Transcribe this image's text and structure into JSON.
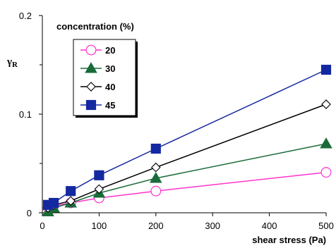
{
  "chart_data": {
    "type": "line",
    "xlabel": "shear stress (Pa)",
    "ylabel_main": "γ",
    "ylabel_sub": "R",
    "xlim": [
      0,
      500
    ],
    "ylim": [
      0,
      0.2
    ],
    "x_ticks": [
      0,
      100,
      200,
      300,
      400,
      500
    ],
    "x_tick_labels": [
      "0",
      "100",
      "200",
      "300",
      "400",
      "500"
    ],
    "y_ticks": [
      0,
      0.1,
      0.2
    ],
    "y_tick_labels": [
      "0",
      "0.1",
      "0.2"
    ],
    "y_minor_ticks": [
      0.05,
      0.15
    ],
    "grid": false,
    "legend": {
      "title": "concentration (%)",
      "placement": "top-left"
    },
    "series": [
      {
        "name": "20",
        "color": "#ff33cc",
        "marker": "open-circle",
        "points": [
          [
            10,
            0.005
          ],
          [
            20,
            0.007
          ],
          [
            50,
            0.01
          ],
          [
            100,
            0.015
          ],
          [
            200,
            0.022
          ],
          [
            500,
            0.041
          ]
        ]
      },
      {
        "name": "30",
        "color": "#1a6b3a",
        "marker": "filled-triangle",
        "points": [
          [
            10,
            0.001
          ],
          [
            20,
            0.005
          ],
          [
            50,
            0.01
          ],
          [
            100,
            0.02
          ],
          [
            200,
            0.035
          ],
          [
            500,
            0.07
          ]
        ]
      },
      {
        "name": "40",
        "color": "#000000",
        "marker": "open-diamond",
        "points": [
          [
            10,
            0.005
          ],
          [
            20,
            0.008
          ],
          [
            50,
            0.012
          ],
          [
            100,
            0.024
          ],
          [
            200,
            0.046
          ],
          [
            500,
            0.11
          ]
        ]
      },
      {
        "name": "45",
        "color": "#1428a0",
        "marker": "filled-square",
        "points": [
          [
            10,
            0.008
          ],
          [
            20,
            0.01
          ],
          [
            50,
            0.022
          ],
          [
            100,
            0.038
          ],
          [
            200,
            0.065
          ],
          [
            500,
            0.145
          ]
        ]
      }
    ]
  }
}
